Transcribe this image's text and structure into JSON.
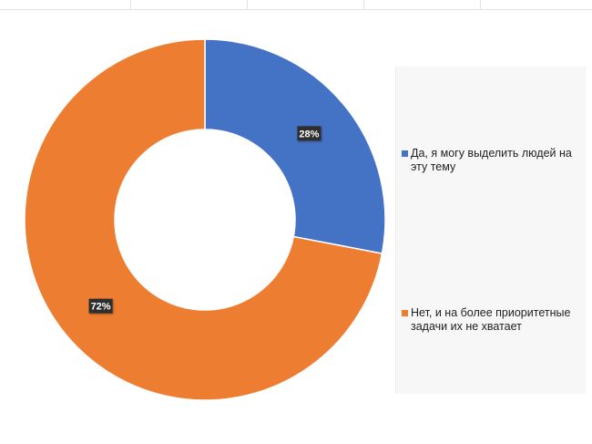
{
  "chart_data": {
    "type": "pie",
    "donut": true,
    "title": "",
    "legend_position": "right",
    "slices": [
      {
        "label": "Да, я могу выделить людей на эту тему",
        "value": 28,
        "display": "28%",
        "color": "#4472C4"
      },
      {
        "label": "Нет, и на более приоритетные задачи их не хватает",
        "value": 72,
        "display": "72%",
        "color": "#ED7D31"
      }
    ],
    "data_label_style": {
      "background": "#2f2f2f",
      "color": "#ffffff"
    }
  }
}
